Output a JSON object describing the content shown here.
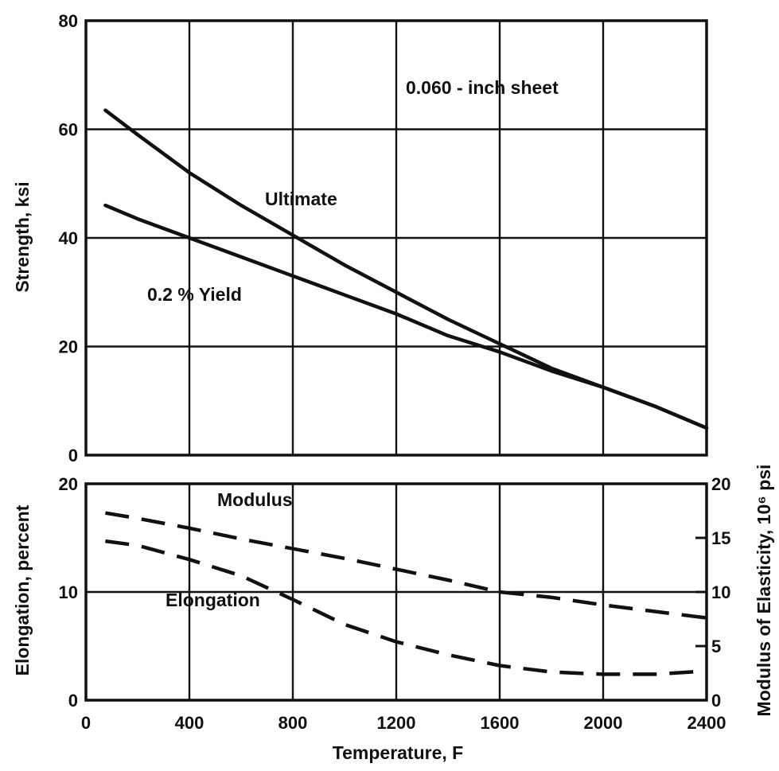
{
  "chart_data": [
    {
      "type": "line",
      "panel": "strength",
      "annotation": "0.060 - inch sheet",
      "xlim": [
        0,
        2400
      ],
      "ylim": [
        0,
        80
      ],
      "xticks": [
        0,
        400,
        800,
        1200,
        1600,
        2000,
        2400
      ],
      "yticks": [
        0,
        20,
        40,
        60,
        80
      ],
      "ytick_labels": [
        "0",
        "20",
        "40",
        "60",
        "80"
      ],
      "ylabel": "Strength, ksi",
      "grid": true,
      "series": [
        {
          "name": "Ultimate",
          "style": "solid",
          "x": [
            75,
            200,
            400,
            600,
            800,
            1000,
            1200,
            1400,
            1600,
            1800,
            2000,
            2200,
            2400
          ],
          "y": [
            63.5,
            59,
            52,
            46,
            40.5,
            35,
            30,
            25,
            20.5,
            16,
            12.5,
            9,
            5
          ]
        },
        {
          "name": "0.2 % Yield",
          "style": "solid",
          "x": [
            75,
            200,
            400,
            600,
            800,
            1000,
            1200,
            1400,
            1600,
            1800,
            2000,
            2200,
            2400
          ],
          "y": [
            46,
            43.5,
            40,
            36.5,
            33,
            29.5,
            26,
            22,
            19,
            15.5,
            12.5,
            9,
            5
          ]
        }
      ]
    },
    {
      "type": "line",
      "panel": "elongation-modulus",
      "xlim": [
        0,
        2400
      ],
      "ylim": [
        0,
        20
      ],
      "xticks": [
        0,
        400,
        800,
        1200,
        1600,
        2000,
        2400
      ],
      "xtick_labels": [
        "0",
        "400",
        "800",
        "1200",
        "1600",
        "2000",
        "2400"
      ],
      "yticks": [
        0,
        10,
        20
      ],
      "ytick_labels": [
        "0",
        "10",
        "20"
      ],
      "y2ticks": [
        0,
        5,
        10,
        15,
        20
      ],
      "y2tick_labels": [
        "0",
        "5",
        "10",
        "15",
        "20"
      ],
      "xlabel": "Temperature, F",
      "ylabel": "Elongation, percent",
      "y2label": "Modulus of Elasticity, 10⁶ psi",
      "grid": true,
      "series": [
        {
          "name": "Modulus",
          "style": "dashed",
          "axis": "right",
          "x": [
            75,
            200,
            400,
            600,
            800,
            1000,
            1200,
            1400,
            1600,
            1800,
            2000,
            2200,
            2400
          ],
          "y": [
            17.3,
            16.8,
            15.9,
            14.9,
            14,
            13.1,
            12.1,
            11.1,
            10,
            9.5,
            8.8,
            8.2,
            7.6
          ]
        },
        {
          "name": "Elongation",
          "style": "dashed",
          "axis": "left",
          "x": [
            75,
            200,
            400,
            600,
            800,
            1000,
            1200,
            1400,
            1600,
            1800,
            2000,
            2200,
            2400
          ],
          "y": [
            14.7,
            14.3,
            13,
            11.5,
            9.3,
            7,
            5.4,
            4.2,
            3.2,
            2.6,
            2.4,
            2.4,
            2.7
          ]
        }
      ]
    }
  ]
}
